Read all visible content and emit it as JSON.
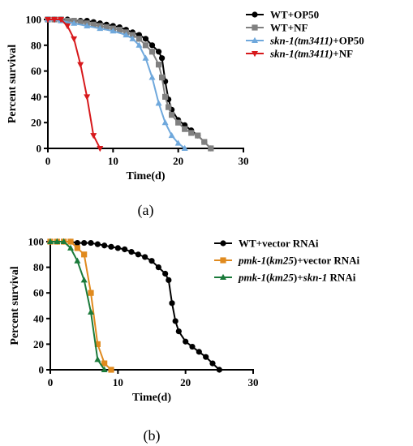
{
  "chart_data": [
    {
      "type": "line",
      "caption": "(a)",
      "xlabel": "Time(d)",
      "ylabel": "Percent survival",
      "xlim": [
        0,
        30
      ],
      "ylim": [
        0,
        100
      ],
      "xticks": [
        0,
        10,
        20,
        30
      ],
      "yticks": [
        0,
        20,
        40,
        60,
        80,
        100
      ],
      "legend_position": "top-right",
      "series": [
        {
          "name": "WT+OP50",
          "color": "#000000",
          "marker": "circle",
          "name_parts": [
            {
              "t": "WT+OP50",
              "i": false
            }
          ],
          "x": [
            0,
            1,
            2,
            3,
            4,
            5,
            6,
            7,
            8,
            9,
            10,
            11,
            12,
            13,
            14,
            15,
            16,
            17,
            17.5,
            18,
            18.5,
            19,
            20,
            21,
            22,
            23,
            24,
            25
          ],
          "y": [
            100,
            100,
            100,
            100,
            99,
            99,
            99,
            98,
            97,
            96,
            95,
            94,
            92,
            90,
            88,
            85,
            80,
            75,
            70,
            52,
            38,
            30,
            22,
            18,
            14,
            10,
            5,
            0
          ]
        },
        {
          "name": "WT+NF",
          "color": "#808080",
          "marker": "square",
          "name_parts": [
            {
              "t": "WT+NF",
              "i": false
            }
          ],
          "x": [
            0,
            1,
            2,
            3,
            4,
            5,
            6,
            7,
            8,
            9,
            10,
            11,
            12,
            13,
            14,
            15,
            16,
            17,
            17.5,
            18,
            18.5,
            19,
            20,
            21,
            22,
            23,
            24,
            25
          ],
          "y": [
            100,
            100,
            100,
            99,
            99,
            98,
            97,
            96,
            95,
            94,
            93,
            92,
            90,
            88,
            85,
            80,
            75,
            65,
            55,
            40,
            32,
            26,
            20,
            15,
            12,
            10,
            5,
            0
          ]
        },
        {
          "name": "skn-1(tm3411)+OP50",
          "color": "#6fa8dc",
          "marker": "triangle-up",
          "name_parts": [
            {
              "t": "skn-1(tm3411)",
              "i": true
            },
            {
              "t": "+OP50",
              "i": false
            }
          ],
          "x": [
            0,
            2,
            4,
            6,
            8,
            10,
            12,
            13,
            14,
            15,
            16,
            17,
            18,
            19,
            20,
            21
          ],
          "y": [
            100,
            99,
            97,
            95,
            93,
            91,
            88,
            85,
            80,
            70,
            55,
            35,
            20,
            10,
            4,
            0
          ]
        },
        {
          "name": "skn-1(tm3411)+NF",
          "color": "#d7191c",
          "marker": "triangle-down",
          "name_parts": [
            {
              "t": "skn-1(tm3411)",
              "i": true
            },
            {
              "t": "+NF",
              "i": false
            }
          ],
          "x": [
            0,
            1,
            2,
            3,
            4,
            5,
            6,
            7,
            8
          ],
          "y": [
            100,
            100,
            100,
            95,
            85,
            65,
            40,
            10,
            0
          ]
        }
      ]
    },
    {
      "type": "line",
      "caption": "(b)",
      "xlabel": "Time(d)",
      "ylabel": "Percent survival",
      "xlim": [
        0,
        30
      ],
      "ylim": [
        0,
        100
      ],
      "xticks": [
        0,
        10,
        20,
        30
      ],
      "yticks": [
        0,
        20,
        40,
        60,
        80,
        100
      ],
      "legend_position": "top-right",
      "series": [
        {
          "name": "WT+vector RNAi",
          "color": "#000000",
          "marker": "circle",
          "name_parts": [
            {
              "t": "WT+vector RNAi",
              "i": false
            }
          ],
          "x": [
            0,
            1,
            2,
            3,
            4,
            5,
            6,
            7,
            8,
            9,
            10,
            11,
            12,
            13,
            14,
            15,
            16,
            17,
            17.5,
            18,
            18.5,
            19,
            20,
            21,
            22,
            23,
            24,
            25
          ],
          "y": [
            100,
            100,
            100,
            100,
            99,
            99,
            99,
            98,
            97,
            96,
            95,
            94,
            92,
            90,
            88,
            85,
            80,
            75,
            70,
            52,
            38,
            30,
            22,
            18,
            14,
            10,
            5,
            0
          ]
        },
        {
          "name": "pmk-1(km25)+vector RNAi",
          "color": "#e08a1e",
          "marker": "square",
          "name_parts": [
            {
              "t": "pmk-1",
              "i": true
            },
            {
              "t": "(",
              "i": false
            },
            {
              "t": "km25",
              "i": true
            },
            {
              "t": ")+vector RNAi",
              "i": false
            }
          ],
          "x": [
            0,
            1,
            2,
            3,
            4,
            5,
            6,
            7,
            8,
            9
          ],
          "y": [
            100,
            100,
            100,
            100,
            95,
            90,
            60,
            20,
            5,
            0
          ]
        },
        {
          "name": "pmk-1(km25)+skn-1 RNAi",
          "color": "#1a7a3a",
          "marker": "triangle-up",
          "name_parts": [
            {
              "t": "pmk-1",
              "i": true
            },
            {
              "t": "(",
              "i": false
            },
            {
              "t": "km25",
              "i": true
            },
            {
              "t": ")+",
              "i": false
            },
            {
              "t": "skn-1",
              "i": true
            },
            {
              "t": " RNAi",
              "i": false
            }
          ],
          "x": [
            0,
            1,
            2,
            3,
            4,
            5,
            6,
            7,
            8
          ],
          "y": [
            100,
            100,
            100,
            95,
            85,
            70,
            45,
            8,
            0
          ]
        }
      ]
    }
  ]
}
